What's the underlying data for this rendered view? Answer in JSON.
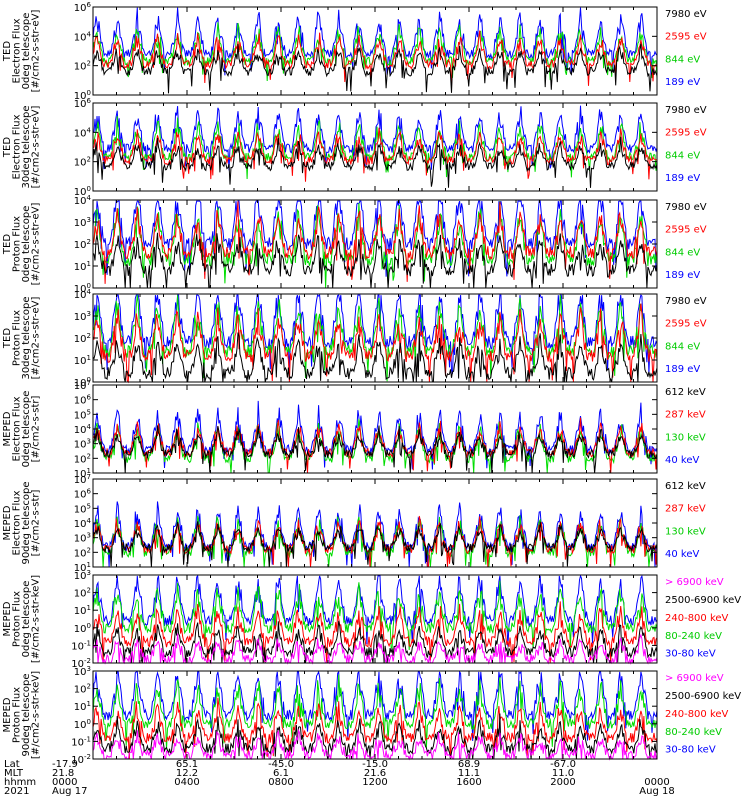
{
  "panels": [
    {
      "name": "ted-electron-0deg",
      "ylabel": [
        "TED",
        "Electron Flux",
        "0deg telescope",
        "[#/cm2-s-str-eV]"
      ],
      "yticks": [
        "10^6",
        "10^4",
        "10^2",
        "10^0"
      ],
      "logmin": 0,
      "logmax": 6,
      "legend": [
        {
          "text": "7980 eV",
          "color": "#000000"
        },
        {
          "text": "2595 eV",
          "color": "#ff0000"
        },
        {
          "text": "844 eV",
          "color": "#00cc00"
        },
        {
          "text": "189 eV",
          "color": "#0000ff"
        }
      ],
      "series_base": [
        {
          "color": "#0000ff",
          "base": 2.8
        },
        {
          "color": "#00dd00",
          "base": 2.3
        },
        {
          "color": "#ff0000",
          "base": 2.1
        },
        {
          "color": "#000000",
          "base": 1.6
        }
      ]
    },
    {
      "name": "ted-electron-30deg",
      "ylabel": [
        "TED",
        "Electron Flux",
        "30deg telescope",
        "[#/cm2-s-str-eV]"
      ],
      "yticks": [
        "10^6",
        "10^4",
        "10^2",
        "10^0"
      ],
      "logmin": 0,
      "logmax": 6,
      "legend": [
        {
          "text": "7980 eV",
          "color": "#000000"
        },
        {
          "text": "2595 eV",
          "color": "#ff0000"
        },
        {
          "text": "844 eV",
          "color": "#00cc00"
        },
        {
          "text": "189 eV",
          "color": "#0000ff"
        }
      ],
      "series_base": [
        {
          "color": "#0000ff",
          "base": 2.9
        },
        {
          "color": "#00dd00",
          "base": 2.3
        },
        {
          "color": "#ff0000",
          "base": 2.1
        },
        {
          "color": "#000000",
          "base": 1.7
        }
      ]
    },
    {
      "name": "ted-proton-0deg",
      "ylabel": [
        "TED",
        "Proton Flux",
        "0deg telescope",
        "[#/cm2-s-str-eV]"
      ],
      "yticks": [
        "10^4",
        "10^3",
        "10^2",
        "10^1",
        "10^0"
      ],
      "logmin": 0,
      "logmax": 4,
      "legend": [
        {
          "text": "7980 eV",
          "color": "#000000"
        },
        {
          "text": "2595 eV",
          "color": "#ff0000"
        },
        {
          "text": "844 eV",
          "color": "#00cc00"
        },
        {
          "text": "189 eV",
          "color": "#0000ff"
        }
      ],
      "series_base": [
        {
          "color": "#0000ff",
          "base": 2.0
        },
        {
          "color": "#00dd00",
          "base": 1.3
        },
        {
          "color": "#ff0000",
          "base": 1.6
        },
        {
          "color": "#000000",
          "base": 0.8
        }
      ]
    },
    {
      "name": "ted-proton-30deg",
      "ylabel": [
        "TED",
        "Proton Flux",
        "30deg telescope",
        "[#/cm2-s-str-eV]"
      ],
      "yticks": [
        "10^4",
        "10^3",
        "10^2",
        "10^1",
        "10^0"
      ],
      "logmin": 0,
      "logmax": 4,
      "legend": [
        {
          "text": "7980 eV",
          "color": "#000000"
        },
        {
          "text": "2595 eV",
          "color": "#ff0000"
        },
        {
          "text": "844 eV",
          "color": "#00cc00"
        },
        {
          "text": "189 eV",
          "color": "#0000ff"
        }
      ],
      "series_base": [
        {
          "color": "#0000ff",
          "base": 1.8
        },
        {
          "color": "#00dd00",
          "base": 1.4
        },
        {
          "color": "#ff0000",
          "base": 1.2
        },
        {
          "color": "#000000",
          "base": 0.4
        }
      ]
    },
    {
      "name": "meped-electron-0deg",
      "ylabel": [
        "MEPED",
        "Electron Flux",
        "0deg telescope",
        "[#/cm2-s-str]"
      ],
      "yticks": [
        "10^7",
        "10^6",
        "10^5",
        "10^4",
        "10^3",
        "10^2",
        "10^1"
      ],
      "logmin": 1,
      "logmax": 7,
      "legend": [
        {
          "text": "612 keV",
          "color": "#000000"
        },
        {
          "text": "287 keV",
          "color": "#ff0000"
        },
        {
          "text": "130 keV",
          "color": "#00cc00"
        },
        {
          "text": "40 keV",
          "color": "#0000ff"
        }
      ],
      "series_base": [
        {
          "color": "#0000ff",
          "base": 2.6
        },
        {
          "color": "#00dd00",
          "base": 2.0
        },
        {
          "color": "#ff0000",
          "base": 2.4
        },
        {
          "color": "#000000",
          "base": 2.3
        }
      ]
    },
    {
      "name": "meped-electron-90deg",
      "ylabel": [
        "MEPED",
        "Electron Flux",
        "90deg telescope",
        "[#/cm2-s-str]"
      ],
      "yticks": [
        "10^7",
        "10^6",
        "10^5",
        "10^4",
        "10^3",
        "10^2",
        "10^1"
      ],
      "logmin": 1,
      "logmax": 7,
      "legend": [
        {
          "text": "612 keV",
          "color": "#000000"
        },
        {
          "text": "287 keV",
          "color": "#ff0000"
        },
        {
          "text": "130 keV",
          "color": "#00cc00"
        },
        {
          "text": "40 keV",
          "color": "#0000ff"
        }
      ],
      "series_base": [
        {
          "color": "#0000ff",
          "base": 2.4
        },
        {
          "color": "#00dd00",
          "base": 2.0
        },
        {
          "color": "#ff0000",
          "base": 2.2
        },
        {
          "color": "#000000",
          "base": 2.3
        }
      ]
    },
    {
      "name": "meped-proton-0deg",
      "ylabel": [
        "MEPED",
        "Proton Flux",
        "0deg telescope",
        "[#/cm2-s-str-keV]"
      ],
      "yticks": [
        "10^3",
        "10^2",
        "10^1",
        "10^0",
        "10^-1",
        "10^-2"
      ],
      "logmin": -2,
      "logmax": 3,
      "legend": [
        {
          "text": "> 6900 keV",
          "color": "#ff00ff"
        },
        {
          "text": "2500-6900 keV",
          "color": "#000000"
        },
        {
          "text": "240-800 keV",
          "color": "#ff0000"
        },
        {
          "text": "80-240 keV",
          "color": "#00cc00"
        },
        {
          "text": "30-80 keV",
          "color": "#0000ff"
        }
      ],
      "series_base": [
        {
          "color": "#0000ff",
          "base": 0.4
        },
        {
          "color": "#00dd00",
          "base": 0.0
        },
        {
          "color": "#ff0000",
          "base": -0.8
        },
        {
          "color": "#000000",
          "base": -1.4
        },
        {
          "color": "#ff00ff",
          "base": -1.8
        }
      ]
    },
    {
      "name": "meped-proton-90deg",
      "ylabel": [
        "MEPED",
        "Proton Flux",
        "90deg telescope",
        "[#/cm2-s-str-keV]"
      ],
      "yticks": [
        "10^3",
        "10^2",
        "10^1",
        "10^0",
        "10^-1",
        "10^-2"
      ],
      "logmin": -2,
      "logmax": 3,
      "legend": [
        {
          "text": "> 6900 keV",
          "color": "#ff00ff"
        },
        {
          "text": "2500-6900 keV",
          "color": "#000000"
        },
        {
          "text": "240-800 keV",
          "color": "#ff0000"
        },
        {
          "text": "80-240 keV",
          "color": "#00cc00"
        },
        {
          "text": "30-80 keV",
          "color": "#0000ff"
        }
      ],
      "series_base": [
        {
          "color": "#0000ff",
          "base": 0.5
        },
        {
          "color": "#00dd00",
          "base": 0.0
        },
        {
          "color": "#ff0000",
          "base": -0.8
        },
        {
          "color": "#000000",
          "base": -1.4
        },
        {
          "color": "#ff00ff",
          "base": -1.8
        }
      ]
    }
  ],
  "footer": {
    "row_labels": [
      "Lat",
      "MLT",
      "hhmm",
      "2021"
    ],
    "columns": [
      {
        "lat": "-17.9",
        "mlt": "21.8",
        "hhmm": "0000",
        "date": "Aug 17"
      },
      {
        "lat": "65.1",
        "mlt": "12.2",
        "hhmm": "0400",
        "date": ""
      },
      {
        "lat": "-45.0",
        "mlt": "6.1",
        "hhmm": "0800",
        "date": ""
      },
      {
        "lat": "-15.0",
        "mlt": "21.6",
        "hhmm": "1200",
        "date": ""
      },
      {
        "lat": "68.9",
        "mlt": "11.1",
        "hhmm": "1600",
        "date": ""
      },
      {
        "lat": "-67.0",
        "mlt": "11.0",
        "hhmm": "2000",
        "date": ""
      },
      {
        "lat": "",
        "mlt": "",
        "hhmm": "0000",
        "date": "Aug 18"
      }
    ]
  },
  "chart_data": {
    "type": "line",
    "title": "",
    "x_axis": {
      "unit": "hhmm",
      "ticks": [
        "0000",
        "0400",
        "0800",
        "1200",
        "1600",
        "2000",
        "0000"
      ],
      "range": [
        "2021 Aug 17 0000",
        "2021 Aug 18 0000"
      ]
    },
    "y_scale": "log",
    "orbits_per_day": 14,
    "grid": false,
    "legend_placement": "right"
  }
}
